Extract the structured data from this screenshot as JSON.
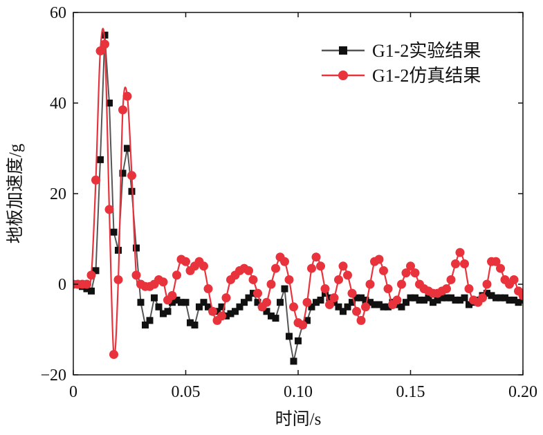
{
  "chart_data": {
    "type": "line",
    "title": "",
    "xlabel": "时间/s",
    "ylabel": "地板加速度/g",
    "xlim": [
      0,
      0.2
    ],
    "ylim": [
      -20,
      60
    ],
    "x_ticks": [
      0,
      0.05,
      0.1,
      0.15,
      0.2
    ],
    "x_tick_labels": [
      "0",
      "0.05",
      "0.10",
      "0.15",
      "0.20"
    ],
    "y_ticks": [
      -20,
      0,
      20,
      40,
      60
    ],
    "y_tick_labels": [
      "−20",
      "0",
      "20",
      "40",
      "60"
    ],
    "grid": false,
    "legend_position": "top-right",
    "series": [
      {
        "name": "G1-2实验结果",
        "color": "#555555",
        "marker": "square",
        "x": [
          0.0,
          0.002,
          0.004,
          0.006,
          0.008,
          0.01,
          0.012,
          0.014,
          0.016,
          0.018,
          0.02,
          0.022,
          0.024,
          0.026,
          0.028,
          0.03,
          0.032,
          0.034,
          0.036,
          0.038,
          0.04,
          0.042,
          0.044,
          0.046,
          0.048,
          0.05,
          0.052,
          0.054,
          0.056,
          0.058,
          0.06,
          0.062,
          0.064,
          0.066,
          0.068,
          0.07,
          0.072,
          0.074,
          0.076,
          0.078,
          0.08,
          0.082,
          0.084,
          0.086,
          0.088,
          0.09,
          0.092,
          0.094,
          0.096,
          0.098,
          0.1,
          0.102,
          0.104,
          0.106,
          0.108,
          0.11,
          0.112,
          0.114,
          0.116,
          0.118,
          0.12,
          0.122,
          0.124,
          0.126,
          0.128,
          0.13,
          0.132,
          0.134,
          0.136,
          0.138,
          0.14,
          0.142,
          0.144,
          0.146,
          0.148,
          0.15,
          0.152,
          0.154,
          0.156,
          0.158,
          0.16,
          0.162,
          0.164,
          0.166,
          0.168,
          0.17,
          0.172,
          0.174,
          0.176,
          0.178,
          0.18,
          0.182,
          0.184,
          0.186,
          0.188,
          0.19,
          0.192,
          0.194,
          0.196,
          0.198,
          0.2
        ],
        "values": [
          0,
          0,
          -0.5,
          -1,
          -1.5,
          3,
          27.5,
          55,
          40,
          11.5,
          7.5,
          24.5,
          30,
          20.5,
          8,
          -4,
          -9,
          -8,
          -3,
          -5,
          -6.5,
          -6,
          -4,
          -3.5,
          -4,
          -4,
          -8.5,
          -9,
          -5,
          -4,
          -5,
          -6,
          -6,
          -5,
          -7,
          -6.5,
          -6,
          -5,
          -4,
          -3,
          -2,
          -4,
          -5,
          -6,
          -7,
          -7.5,
          -4,
          -1,
          -11.5,
          -17,
          -12.5,
          -9,
          -8,
          -5,
          -4,
          -3.5,
          -2,
          -3,
          -4,
          -5,
          -6,
          -5,
          -4,
          -3,
          -3,
          -3.5,
          -4,
          -4.5,
          -4.5,
          -5,
          -5,
          -4,
          -4.5,
          -5,
          -4,
          -3,
          -3,
          -3.5,
          -3.5,
          -3,
          -4,
          -3.5,
          -3,
          -3,
          -3,
          -3.5,
          -3.5,
          -3,
          -4.5,
          -4,
          -3.5,
          -2.5,
          -2,
          -2.5,
          -3,
          -3,
          -3,
          -3.5,
          -3.5,
          -4,
          -3.5
        ]
      },
      {
        "name": "G1-2仿真结果",
        "color": "#e8323c",
        "marker": "circle",
        "x": [
          0.0,
          0.002,
          0.004,
          0.006,
          0.008,
          0.01,
          0.012,
          0.014,
          0.016,
          0.018,
          0.02,
          0.022,
          0.024,
          0.026,
          0.028,
          0.03,
          0.032,
          0.034,
          0.036,
          0.038,
          0.04,
          0.042,
          0.044,
          0.046,
          0.048,
          0.05,
          0.052,
          0.054,
          0.056,
          0.058,
          0.06,
          0.062,
          0.064,
          0.066,
          0.068,
          0.07,
          0.072,
          0.074,
          0.076,
          0.078,
          0.08,
          0.082,
          0.084,
          0.086,
          0.088,
          0.09,
          0.092,
          0.094,
          0.096,
          0.098,
          0.1,
          0.102,
          0.104,
          0.106,
          0.108,
          0.11,
          0.112,
          0.114,
          0.116,
          0.118,
          0.12,
          0.122,
          0.124,
          0.126,
          0.128,
          0.13,
          0.132,
          0.134,
          0.136,
          0.138,
          0.14,
          0.142,
          0.144,
          0.146,
          0.148,
          0.15,
          0.152,
          0.154,
          0.156,
          0.158,
          0.16,
          0.162,
          0.164,
          0.166,
          0.168,
          0.17,
          0.172,
          0.174,
          0.176,
          0.178,
          0.18,
          0.182,
          0.184,
          0.186,
          0.188,
          0.19,
          0.192,
          0.194,
          0.196,
          0.198,
          0.2
        ],
        "values": [
          0,
          0,
          0,
          0,
          2,
          23,
          51.5,
          53,
          16.5,
          -15.5,
          1,
          38.5,
          41.5,
          24,
          2,
          0,
          -0.5,
          -0.5,
          0,
          1,
          0.5,
          -3.5,
          -2.5,
          2,
          5.5,
          5,
          3,
          4,
          5,
          4,
          -1,
          -6,
          -8,
          -7,
          -3,
          1,
          2,
          3,
          3.5,
          3,
          1,
          -2,
          -5,
          -4,
          0,
          3.5,
          6,
          5,
          1,
          -5,
          -8.5,
          -9,
          -4,
          3.5,
          6,
          4,
          -1,
          -4.5,
          -3,
          1,
          4,
          2,
          -2,
          -6,
          -8,
          -5,
          0,
          5,
          5.5,
          3,
          -1,
          -4.5,
          -3.5,
          0,
          2.5,
          4,
          2.5,
          0,
          -1,
          -1.5,
          -2,
          -2,
          -1.5,
          -1,
          1,
          4.5,
          7,
          4.5,
          -1,
          -3.5,
          -4,
          -3,
          0,
          5,
          5,
          3.5,
          1,
          0,
          1,
          -1.5,
          -2.5
        ]
      }
    ]
  }
}
